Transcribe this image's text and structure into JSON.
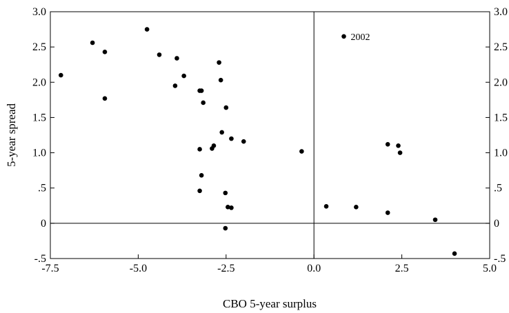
{
  "chart_data": {
    "type": "scatter",
    "xlabel": "CBO 5-year surplus",
    "ylabel": "5-year spread",
    "xlim": [
      -7.5,
      5.0
    ],
    "ylim": [
      -0.5,
      3.0
    ],
    "x_ticks": [
      {
        "value": -7.5,
        "label": "-7.5"
      },
      {
        "value": -5.0,
        "label": "-5.0"
      },
      {
        "value": -2.5,
        "label": "-2.5"
      },
      {
        "value": 0.0,
        "label": "0.0"
      },
      {
        "value": 2.5,
        "label": "2.5"
      },
      {
        "value": 5.0,
        "label": "5.0"
      }
    ],
    "y_ticks": [
      {
        "value": -0.5,
        "label": "-.5"
      },
      {
        "value": 0.0,
        "label": "0"
      },
      {
        "value": 0.5,
        "label": ".5"
      },
      {
        "value": 1.0,
        "label": "1.0"
      },
      {
        "value": 1.5,
        "label": "1.5"
      },
      {
        "value": 2.0,
        "label": "2.0"
      },
      {
        "value": 2.5,
        "label": "2.5"
      },
      {
        "value": 3.0,
        "label": "3.0"
      }
    ],
    "right_axis_mirrored": true,
    "reference_lines": {
      "x": 0,
      "y": 0
    },
    "grid": false,
    "marker_color": "#000000",
    "points": [
      {
        "x": -7.2,
        "y": 2.1
      },
      {
        "x": -6.3,
        "y": 2.56
      },
      {
        "x": -5.95,
        "y": 2.43
      },
      {
        "x": -5.95,
        "y": 1.77
      },
      {
        "x": -4.75,
        "y": 2.75
      },
      {
        "x": -4.4,
        "y": 2.39
      },
      {
        "x": -3.9,
        "y": 2.34
      },
      {
        "x": -3.7,
        "y": 2.09
      },
      {
        "x": -3.95,
        "y": 1.95
      },
      {
        "x": -3.25,
        "y": 1.88
      },
      {
        "x": -3.2,
        "y": 1.88
      },
      {
        "x": -3.15,
        "y": 1.71
      },
      {
        "x": -3.25,
        "y": 1.05
      },
      {
        "x": -3.2,
        "y": 0.68
      },
      {
        "x": -3.25,
        "y": 0.46
      },
      {
        "x": -2.7,
        "y": 2.28
      },
      {
        "x": -2.65,
        "y": 2.03
      },
      {
        "x": -2.5,
        "y": 1.64
      },
      {
        "x": -2.62,
        "y": 1.29
      },
      {
        "x": -2.35,
        "y": 1.2
      },
      {
        "x": -2.0,
        "y": 1.16
      },
      {
        "x": -2.85,
        "y": 1.1
      },
      {
        "x": -2.9,
        "y": 1.06
      },
      {
        "x": -2.52,
        "y": 0.43
      },
      {
        "x": -2.45,
        "y": 0.23
      },
      {
        "x": -2.35,
        "y": 0.22
      },
      {
        "x": -2.52,
        "y": -0.07
      },
      {
        "x": -0.35,
        "y": 1.02
      },
      {
        "x": 0.35,
        "y": 0.24
      },
      {
        "x": 1.2,
        "y": 0.23
      },
      {
        "x": 2.1,
        "y": 1.12
      },
      {
        "x": 2.4,
        "y": 1.1
      },
      {
        "x": 2.45,
        "y": 1.0
      },
      {
        "x": 2.1,
        "y": 0.15
      },
      {
        "x": 3.45,
        "y": 0.05
      },
      {
        "x": 4.0,
        "y": -0.43
      },
      {
        "x": 0.85,
        "y": 2.65
      }
    ],
    "annotations": [
      {
        "text": "2002",
        "x": 0.85,
        "y": 2.65
      }
    ]
  }
}
